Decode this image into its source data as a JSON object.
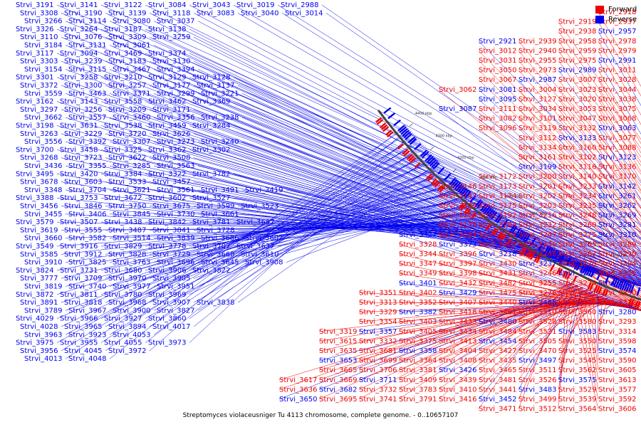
{
  "legend": {
    "forward_label": "Forward",
    "reverse_label": "Reverse",
    "forward_color": "#ee0000",
    "reverse_color": "#0000ee"
  },
  "title": "Streptomyces violaceusniger Tu 4113 chromosome, complete genome. - 0..10657107",
  "axis_ticks": [
    "3100 kbp",
    "3200 kbp",
    "3300 kbp",
    "3400 kbp",
    "3500 kbp",
    "3600 kbp",
    "3700 kbp",
    "3800 kbp",
    "3900 kbp",
    "4000 kbp",
    "4100 kbp",
    "4200 kbp",
    "4300 kbp",
    "4400 kbp"
  ],
  "reverse_labels": [
    "Strvi_3191",
    "Strvi_3141",
    "Strvi_3122",
    "Strvi_3084",
    "Strvi_3043",
    "Strvi_3019",
    "Strvi_2988",
    "Strvi_3308",
    "Strvi_3190",
    "Strvi_3139",
    "Strvi_3118",
    "Strvi_3083",
    "Strvi_3040",
    "Strvi_3014",
    "Strvi_3266",
    "Strvi_3114",
    "Strvi_3080",
    "Strvi_3037",
    "Strvi_3326",
    "Strvi_3264",
    "Strvi_3187",
    "Strvi_3138",
    "Strvi_3110",
    "Strvi_3076",
    "Strvi_3309",
    "Strvi_3259",
    "Strvi_3184",
    "Strvi_3131",
    "Strvi_3061",
    "Strvi_3117",
    "Strvi_3094",
    "Strvi_3469",
    "Strvi_3374",
    "Strvi_3303",
    "Strvi_3239",
    "Strvi_3183",
    "Strvi_3130",
    "Strvi_3154",
    "Strvi_3115",
    "Strvi_3467",
    "Strvi_3394",
    "Strvi_3301",
    "Strvi_3258",
    "Strvi_3210",
    "Strvi_3129",
    "Strvi_3128",
    "Strvi_3372",
    "Strvi_3300",
    "Strvi_3257",
    "Strvi_3177",
    "Strvi_3137",
    "Strvi_3559",
    "Strvi_3463",
    "Strvi_3371",
    "Strvi_3299",
    "Strvi_3221",
    "Strvi_3162",
    "Strvi_3143",
    "Strvi_3558",
    "Strvi_3462",
    "Strvi_3369",
    "Strvi_3297",
    "Strvi_3256",
    "Strvi_3209",
    "Strvi_3171",
    "Strvi_3662",
    "Strvi_3557",
    "Strvi_3460",
    "Strvi_3356",
    "Strvi_3238",
    "Strvi_3198",
    "Strvi_3631",
    "Strvi_3538",
    "Strvi_3459",
    "Strvi_3284",
    "Strvi_3263",
    "Strvi_3229",
    "Strvi_3720",
    "Strvi_3626",
    "Strvi_3556",
    "Strvi_3392",
    "Strvi_3307",
    "Strvi_3273",
    "Strvi_3240",
    "Strvi_3700",
    "Strvi_3458",
    "Strvi_3325",
    "Strvi_3362",
    "Strvi_3302",
    "Strvi_3268",
    "Strvi_3723",
    "Strvi_3622",
    "Strvi_3508",
    "Strvi_3436",
    "Strvi_3355",
    "Strvi_3285",
    "Strvi_3563",
    "Strvi_3495",
    "Strvi_3420",
    "Strvi_3384",
    "Strvi_3322",
    "Strvi_3782",
    "Strvi_3678",
    "Strvi_3603",
    "Strvi_3533",
    "Strvi_3457",
    "Strvi_3348",
    "Strvi_3704",
    "Strvi_3621",
    "Strvi_3561",
    "Strvi_3491",
    "Strvi_3419",
    "Strvi_3388",
    "Strvi_3753",
    "Strvi_3672",
    "Strvi_3602",
    "Strvi_3527",
    "Strvi_3456",
    "Strvi_3846",
    "Strvi_3750",
    "Strvi_3675",
    "Strvi_3599",
    "Strvi_3523",
    "Strvi_3455",
    "Strvi_3406",
    "Strvi_3845",
    "Strvi_3730",
    "Strvi_3661",
    "Strvi_3579",
    "Strvi_3507",
    "Strvi_3438",
    "Strvi_3842",
    "Strvi_3781",
    "Strvi_3697",
    "Strvi_3619",
    "Strvi_3555",
    "Strvi_3487",
    "Strvi_3841",
    "Strvi_3728",
    "Strvi_3660",
    "Strvi_3582",
    "Strvi_3514",
    "Strvi_3839",
    "Strvi_3686",
    "Strvi_3607",
    "Strvi_3549",
    "Strvi_3916",
    "Strvi_3829",
    "Strvi_3778",
    "Strvi_3707",
    "Strvi_3637",
    "Strvi_3585",
    "Strvi_3912",
    "Strvi_3828",
    "Strvi_3729",
    "Strvi_3668",
    "Strvi_3610",
    "Strvi_3910",
    "Strvi_3825",
    "Strvi_3763",
    "Strvi_3696",
    "Strvi_3645",
    "Strvi_3908",
    "Strvi_3824",
    "Strvi_3731",
    "Strvi_3680",
    "Strvi_3906",
    "Strvi_3822",
    "Strvi_3777",
    "Strvi_3709",
    "Strvi_3970",
    "Strvi_3905",
    "Strvi_3819",
    "Strvi_3740",
    "Strvi_3977",
    "Strvi_3951",
    "Strvi_3872",
    "Strvi_3811",
    "Strvi_3780",
    "Strvi_3969",
    "Strvi_3891",
    "Strvi_3818",
    "Strvi_3968",
    "Strvi_3907",
    "Strvi_3838",
    "Strvi_3789",
    "Strvi_3967",
    "Strvi_3900",
    "Strvi_3827",
    "Strvi_4029",
    "Strvi_3966",
    "Strvi_3927",
    "Strvi_3860",
    "Strvi_4028",
    "Strvi_3965",
    "Strvi_3894",
    "Strvi_4017",
    "Strvi_3963",
    "Strvi_3923",
    "Strvi_4053",
    "Strvi_3975",
    "Strvi_3955",
    "Strvi_4055",
    "Strvi_3973",
    "Strvi_3956",
    "Strvi_4045",
    "Strvi_3972",
    "Strvi_4013",
    "Strvi_4048"
  ],
  "right_labels": [
    "Strvi_2918",
    "Strvi_2937",
    "Strvi_2919",
    "Strvi_2957",
    "Strvi_2938",
    "Strvi_2978",
    "Strvi_2958",
    "Strvi_2939",
    "Strvi_2921",
    "Strvi_2979",
    "Strvi_2959",
    "Strvi_2940",
    "Strvi_3012",
    "Strvi_2991",
    "Strvi_2975",
    "Strvi_2955",
    "Strvi_3031",
    "Strvi_3011",
    "Strvi_2989",
    "Strvi_2973",
    "Strvi_3050",
    "Strvi_3028",
    "Strvi_3007",
    "Strvi_2987",
    "Strvi_3067",
    "Strvi_3044",
    "Strvi_3023",
    "Strvi_3004",
    "Strvi_3081",
    "Strvi_3062",
    "Strvi_3038",
    "Strvi_3020",
    "Strvi_3127",
    "Strvi_3095",
    "Strvi_3075",
    "Strvi_3053",
    "Strvi_3034",
    "Strvi_3111",
    "Strvi_3087",
    "Strvi_3068",
    "Strvi_3047",
    "Strvi_3101",
    "Strvi_3082",
    "Strvi_3063",
    "Strvi_3132",
    "Strvi_3119",
    "Strvi_3096",
    "Strvi_3077",
    "Strvi_3133",
    "Strvi_3112",
    "Strvi_3088",
    "Strvi_3160",
    "Strvi_3134",
    "Strvi_3123",
    "Strvi_3102",
    "Strvi_3161",
    "Strvi_3136",
    "Strvi_3116",
    "Strvi_3199",
    "Strvi_3170",
    "Strvi_3140",
    "Strvi_3200",
    "Strvi_3172",
    "Strvi_3142",
    "Strvi_3233",
    "Strvi_3201",
    "Strvi_3173",
    "Strvi_3146",
    "Strvi_3261",
    "Strvi_3234",
    "Strvi_3202",
    "Strvi_3174",
    "Strvi_3147",
    "Strvi_3262",
    "Strvi_3235",
    "Strvi_3203",
    "Strvi_3175",
    "Strvi_3149",
    "Strvi_3269",
    "Strvi_3248",
    "Strvi_3216",
    "Strvi_3192",
    "Strvi_3166",
    "Strvi_3281",
    "Strvi_3260",
    "Strvi_3232",
    "Strvi_3204",
    "Strvi_3179",
    "Strvi_3310",
    "Strvi_3275",
    "Strvi_3247",
    "Strvi_3217",
    "Strvi_3194",
    "Strvi_3327",
    "Strvi_3289",
    "Strvi_3265",
    "Strvi_3236",
    "Strvi_3205",
    "Strvi_3373",
    "Strvi_3328",
    "Strvi_3290",
    "Strvi_3267",
    "Strvi_3245",
    "Strvi_3218",
    "Strvi_3396",
    "Strvi_3344",
    "Strvi_3304",
    "Strvi_3270",
    "Strvi_3237",
    "Strvi_3430",
    "Strvi_3397",
    "Strvi_3347",
    "Strvi_3305",
    "Strvi_3272",
    "Strvi_3246",
    "Strvi_3431",
    "Strvi_3398",
    "Strvi_3349",
    "Strvi_3306",
    "Strvi_3274",
    "Strvi_3255",
    "Strvi_3482",
    "Strvi_3432",
    "Strvi_3401",
    "Strvi_3350",
    "Strvi_3311",
    "Strvi_3276",
    "Strvi_3475",
    "Strvi_3429",
    "Strvi_3402",
    "Strvi_3351",
    "Strvi_3312",
    "Strvi_3277",
    "Strvi_3488",
    "Strvi_3440",
    "Strvi_3407",
    "Strvi_3352",
    "Strvi_3313",
    "Strvi_3280",
    "Strvi_3560",
    "Strvi_3510",
    "Strvi_3461",
    "Strvi_3418",
    "Strvi_3382",
    "Strvi_3329",
    "Strvi_3293",
    "Strvi_3580",
    "Strvi_3528",
    "Strvi_3480",
    "Strvi_3433",
    "Strvi_3403",
    "Strvi_3354",
    "Strvi_3314",
    "Strvi_3583",
    "Strvi_3531",
    "Strvi_3484",
    "Strvi_3434",
    "Strvi_3405",
    "Strvi_3357",
    "Strvi_3319",
    "Strvi_3598",
    "Strvi_3550",
    "Strvi_3505",
    "Strvi_3454",
    "Strvi_3413",
    "Strvi_3375",
    "Strvi_3332",
    "Strvi_3615",
    "Strvi_3574",
    "Strvi_3525",
    "Strvi_3470",
    "Strvi_3427",
    "Strvi_3404",
    "Strvi_3358",
    "Strvi_3681",
    "Strvi_3635",
    "Strvi_3590",
    "Strvi_3545",
    "Strvi_3497",
    "Strvi_3435",
    "Strvi_3408",
    "Strvi_3364",
    "Strvi_3699",
    "Strvi_3653",
    "Strvi_3605",
    "Strvi_3562",
    "Strvi_3511",
    "Strvi_3465",
    "Strvi_3426",
    "Strvi_3381",
    "Strvi_3706",
    "Strvi_3665",
    "Strvi_3613",
    "Strvi_3575",
    "Strvi_3526",
    "Strvi_3481",
    "Strvi_3439",
    "Strvi_3409",
    "Strvi_3711",
    "Strvi_3669",
    "Strvi_3617",
    "Strvi_3577",
    "Strvi_3529",
    "Strvi_3483",
    "Strvi_3441",
    "Strvi_3410",
    "Strvi_3783",
    "Strvi_3732",
    "Strvi_3682",
    "Strvi_3636",
    "Strvi_3592",
    "Strvi_3539",
    "Strvi_3499",
    "Strvi_3452",
    "Strvi_3416",
    "Strvi_3791",
    "Strvi_3741",
    "Strvi_3695",
    "Strvi_3650",
    "Strvi_3606",
    "Strvi_3564",
    "Strvi_3512",
    "Strvi_3471",
    "Strvi_3428",
    "Strvi_3795",
    "Strvi_3755",
    "Strvi_3705",
    "Strvi_3663",
    "Strvi_3612",
    "Strvi_3576",
    "Strvi_3530",
    "Strvi_3485",
    "Strvi_3442",
    "Strvi_3581",
    "Strvi_3536",
    "Strvi_3500",
    "Strvi_3451",
    "Strvi_3591",
    "Strvi_3551",
    "Strvi_3509",
    "Strvi_3466"
  ]
}
